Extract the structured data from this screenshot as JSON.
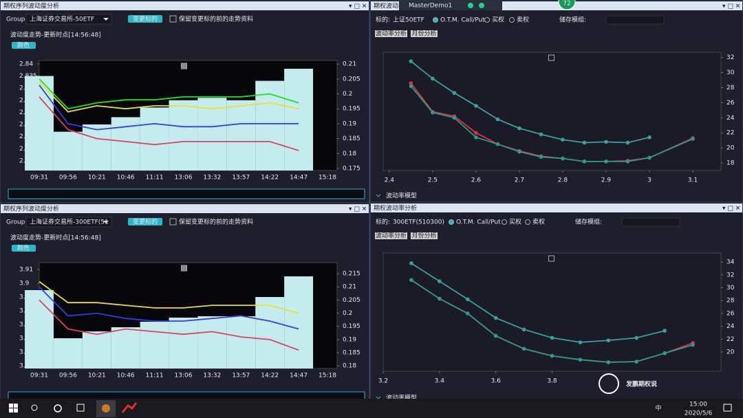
{
  "app_title": "MasterDemo1",
  "badge": "72",
  "panels": [
    {
      "title": "期权序列波动度分析",
      "group_label": "Group",
      "group_value": "上海证券交易所-50ETF",
      "button": "变更标的",
      "checkbox": "保留变更标的前的走势资料",
      "subtitle": "波动度走势-更新时点[14:56:48]",
      "color_button": "颜色"
    },
    {
      "title": "期权波动率分析",
      "underlying_label": "标的:",
      "underlying": "上证50ETF",
      "options": [
        "O.T.M. Call/Put",
        "买权",
        "卖权"
      ],
      "save_label": "储存模组:",
      "tabs": [
        "波动率分析",
        "月份分析"
      ],
      "footer": "波动率模型"
    },
    {
      "title": "期权序列波动度分析",
      "group_label": "Group",
      "group_value": "上海证券交易所-300ETF(51",
      "button": "变更标的",
      "checkbox": "保留变更标的前的走势资料",
      "subtitle": "波动度走势-更新时点[14:56:48]",
      "color_button": "颜色"
    },
    {
      "title": "期权波动率分析",
      "underlying_label": "标的:",
      "underlying": "300ETF(510300)",
      "options": [
        "O.T.M. Call/Put",
        "买权",
        "卖权"
      ],
      "save_label": "储存模组:",
      "tabs": [
        "波动率分析",
        "月份分析"
      ],
      "footer": "波动率模型"
    }
  ],
  "taskbar": {
    "ime": "中",
    "time": "15:00",
    "date": "2020/5/6"
  },
  "watermark": "发鹏期权说",
  "chart_data": [
    {
      "type": "line",
      "categories": [
        "09:31",
        "09:56",
        "10:21",
        "10:46",
        "11:11",
        "13:06",
        "13:32",
        "13:57",
        "14:22",
        "14:47",
        "15:18"
      ],
      "ylim": [
        2.796,
        2.8414
      ],
      "yticks": [
        2.8,
        2.805,
        2.81,
        2.815,
        2.82,
        2.825,
        2.83,
        2.835,
        2.84
      ],
      "y2lim": [
        0.1743,
        0.2112
      ],
      "y2ticks": [
        0.175,
        0.18,
        0.185,
        0.19,
        0.195,
        0.2,
        0.205,
        0.21
      ],
      "series": [
        {
          "kind": "bar",
          "color": "#c4ecee",
          "values": [
            2.835,
            2.812,
            2.815,
            2.818,
            2.822,
            2.825,
            2.826,
            2.825,
            2.833,
            2.838,
            null
          ]
        },
        {
          "axis": "y2",
          "color": "#22e022",
          "values": [
            0.205,
            0.195,
            0.197,
            0.198,
            0.198,
            0.199,
            0.199,
            0.199,
            0.2,
            0.197,
            null
          ]
        },
        {
          "axis": "y2",
          "color": "#e8e030",
          "values": [
            0.204,
            0.194,
            0.196,
            0.195,
            0.196,
            0.196,
            0.195,
            0.196,
            0.197,
            0.195,
            null
          ]
        },
        {
          "axis": "y2",
          "color": "#3a3ae0",
          "values": [
            0.203,
            0.19,
            0.188,
            0.189,
            0.19,
            0.189,
            0.189,
            0.19,
            0.19,
            0.19,
            null
          ]
        },
        {
          "axis": "y2",
          "color": "#e04060",
          "values": [
            0.199,
            0.188,
            0.185,
            0.184,
            0.183,
            0.184,
            0.184,
            0.184,
            0.184,
            0.181,
            null
          ]
        }
      ]
    },
    {
      "type": "line",
      "xlim": [
        2.386,
        3.165
      ],
      "xticks": [
        2.4,
        2.5,
        2.6,
        2.7,
        2.8,
        2.9,
        3,
        3.1
      ],
      "y2lim": [
        17,
        32.7
      ],
      "y2ticks": [
        18,
        20,
        22,
        24,
        26,
        28,
        30,
        32
      ],
      "series": [
        {
          "axis": "y2",
          "color": "#3aa0a0",
          "x": [
            2.45,
            2.5,
            2.55,
            2.6,
            2.65,
            2.7,
            2.75,
            2.8,
            2.85,
            2.9,
            2.95,
            3
          ],
          "values": [
            31.5,
            29.2,
            27.3,
            25.6,
            23.8,
            22.6,
            21.8,
            21.1,
            20.7,
            20.8,
            20.7,
            21.4
          ]
        },
        {
          "axis": "y2",
          "color": "#e03040",
          "x": [
            2.45,
            2.5,
            2.55,
            2.6,
            2.65,
            2.7,
            2.75,
            2.8,
            2.85,
            2.9,
            2.95,
            3,
            3.1
          ],
          "values": [
            28.6,
            24.8,
            24.2,
            22,
            20.5,
            19.6,
            18.9,
            18.6,
            18.2,
            18.2,
            18.3,
            18.7,
            21.3
          ]
        },
        {
          "axis": "y2",
          "color": "#2a9a8a",
          "x": [
            2.45,
            2.5,
            2.55,
            2.6,
            2.65,
            2.7,
            2.75,
            2.8,
            2.85,
            2.9,
            2.95,
            3,
            3.1
          ],
          "values": [
            28.2,
            24.7,
            24,
            21.4,
            20.5,
            19.5,
            18.8,
            18.6,
            18.2,
            18.2,
            18.2,
            18.7,
            21.2
          ]
        }
      ]
    },
    {
      "type": "line",
      "categories": [
        "09:31",
        "09:56",
        "10:21",
        "10:46",
        "11:11",
        "13:06",
        "13:32",
        "13:57",
        "14:22",
        "14:47",
        "15:18"
      ],
      "ylim": [
        3.838,
        3.915
      ],
      "yticks": [
        3.84,
        3.85,
        3.86,
        3.87,
        3.88,
        3.89,
        3.9,
        3.91
      ],
      "y2lim": [
        0.179,
        0.2192
      ],
      "y2ticks": [
        0.18,
        0.185,
        0.19,
        0.195,
        0.2,
        0.205,
        0.21,
        0.215
      ],
      "series": [
        {
          "kind": "bar",
          "color": "#c4ecee",
          "values": [
            3.895,
            3.86,
            3.865,
            3.868,
            3.872,
            3.875,
            3.876,
            3.876,
            3.89,
            3.905,
            null
          ]
        },
        {
          "axis": "y2",
          "color": "#e8e030",
          "values": [
            0.212,
            0.204,
            0.204,
            0.203,
            0.202,
            0.202,
            0.203,
            0.203,
            0.203,
            0.2,
            null
          ]
        },
        {
          "axis": "y2",
          "color": "#3a3ae0",
          "values": [
            0.21,
            0.199,
            0.2,
            0.198,
            0.197,
            0.197,
            0.198,
            0.199,
            0.197,
            0.194,
            null
          ]
        },
        {
          "axis": "y2",
          "color": "#e04060",
          "values": [
            0.205,
            0.194,
            0.192,
            0.194,
            0.193,
            0.192,
            0.193,
            0.191,
            0.19,
            0.186,
            null
          ]
        }
      ]
    },
    {
      "type": "line",
      "xlim": [
        3.2,
        4.4
      ],
      "xticks": [
        3.2,
        3.4,
        3.6,
        3.8
      ],
      "y2lim": [
        17,
        35.4
      ],
      "y2ticks": [
        20,
        22,
        24,
        26,
        28,
        30,
        32,
        34
      ],
      "series": [
        {
          "axis": "y2",
          "color": "#3aa0a0",
          "x": [
            3.3,
            3.4,
            3.5,
            3.6,
            3.7,
            3.8,
            3.9,
            4,
            4.1,
            4.2
          ],
          "values": [
            33.8,
            31,
            28.2,
            25.3,
            23.5,
            22.2,
            21.5,
            21.8,
            22.2,
            23.3
          ]
        },
        {
          "axis": "y2",
          "color": "#e03040",
          "x": [
            3.3,
            3.4,
            3.5,
            3.6,
            3.7,
            3.8,
            3.9,
            4,
            4.1,
            4.2,
            4.3
          ],
          "values": [
            31.2,
            28.3,
            26,
            22.5,
            20.5,
            19.4,
            18.8,
            18.4,
            18.5,
            19.8,
            21.4
          ]
        },
        {
          "axis": "y2",
          "color": "#2a9a8a",
          "x": [
            3.3,
            3.4,
            3.5,
            3.6,
            3.7,
            3.8,
            3.9,
            4,
            4.1,
            4.2,
            4.3
          ],
          "values": [
            31.2,
            28.3,
            26,
            22.5,
            20.5,
            19.4,
            18.8,
            18.4,
            18.5,
            19.8,
            21.1
          ]
        }
      ]
    }
  ]
}
